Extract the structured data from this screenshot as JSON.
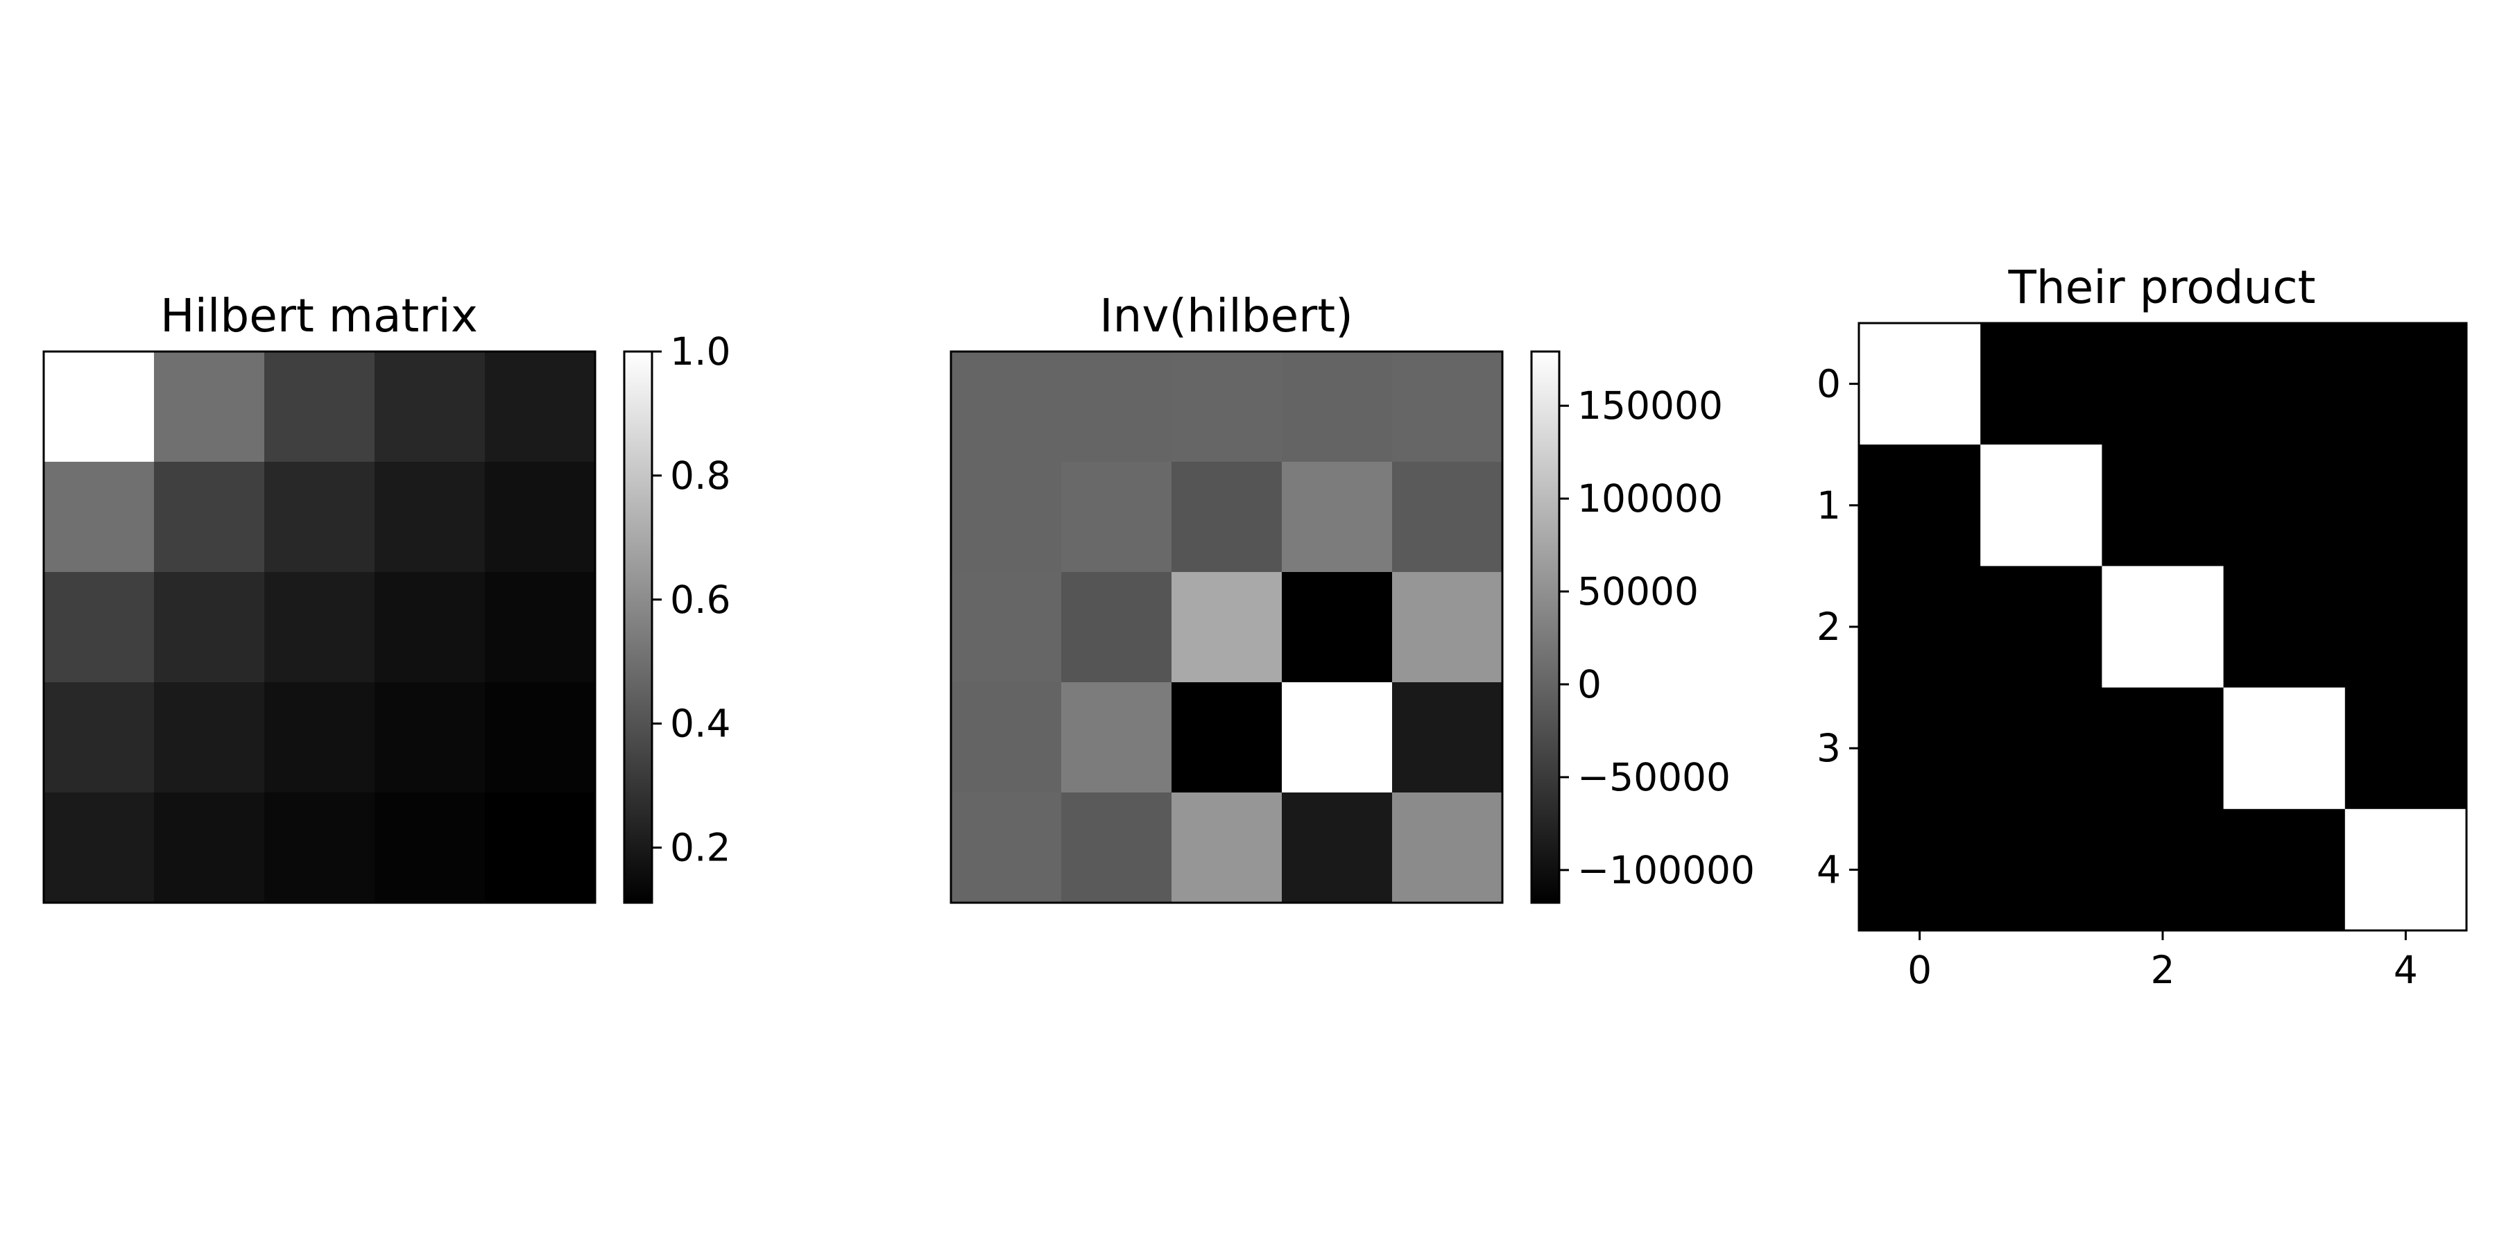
{
  "chart_data": [
    {
      "type": "heatmap",
      "title": "Hilbert matrix",
      "colormap": "gray",
      "rows": 5,
      "cols": 5,
      "values": [
        [
          1.0,
          0.5,
          0.3333,
          0.25,
          0.2
        ],
        [
          0.5,
          0.3333,
          0.25,
          0.2,
          0.1667
        ],
        [
          0.3333,
          0.25,
          0.2,
          0.1667,
          0.1429
        ],
        [
          0.25,
          0.2,
          0.1667,
          0.1429,
          0.125
        ],
        [
          0.2,
          0.1667,
          0.1429,
          0.125,
          0.1111
        ]
      ],
      "vmin": 0.1111,
      "vmax": 1.0,
      "axes_visible": false,
      "colorbar": {
        "ticks": [
          0.2,
          0.4,
          0.6,
          0.8,
          1.0
        ],
        "tick_labels": [
          "0.2",
          "0.4",
          "0.6",
          "0.8",
          "1.0"
        ]
      }
    },
    {
      "type": "heatmap",
      "title": "Inv(hilbert)",
      "colormap": "gray",
      "rows": 5,
      "cols": 5,
      "values": [
        [
          25,
          -300,
          1050,
          -1400,
          630
        ],
        [
          -300,
          4800,
          -18900,
          26880,
          -12600
        ],
        [
          1050,
          -18900,
          79380,
          -117600,
          56700
        ],
        [
          -1400,
          26880,
          -117600,
          179200,
          -88200
        ],
        [
          630,
          -12600,
          56700,
          -88200,
          44100
        ]
      ],
      "vmin": -117600,
      "vmax": 179200,
      "axes_visible": false,
      "colorbar": {
        "ticks": [
          -100000,
          -50000,
          0,
          50000,
          100000,
          150000
        ],
        "tick_labels": [
          "−100000",
          "−50000",
          "0",
          "50000",
          "100000",
          "150000"
        ]
      }
    },
    {
      "type": "heatmap",
      "title": "Their product",
      "colormap": "gray",
      "rows": 5,
      "cols": 5,
      "values": [
        [
          1,
          0,
          0,
          0,
          0
        ],
        [
          0,
          1,
          0,
          0,
          0
        ],
        [
          0,
          0,
          1,
          0,
          0
        ],
        [
          0,
          0,
          0,
          1,
          0
        ],
        [
          0,
          0,
          0,
          0,
          1
        ]
      ],
      "vmin": 0,
      "vmax": 1,
      "axes_visible": true,
      "xticks": [
        0,
        2,
        4
      ],
      "xtick_labels": [
        "0",
        "2",
        "4"
      ],
      "yticks": [
        0,
        1,
        2,
        3,
        4
      ],
      "ytick_labels": [
        "0",
        "1",
        "2",
        "3",
        "4"
      ]
    }
  ]
}
